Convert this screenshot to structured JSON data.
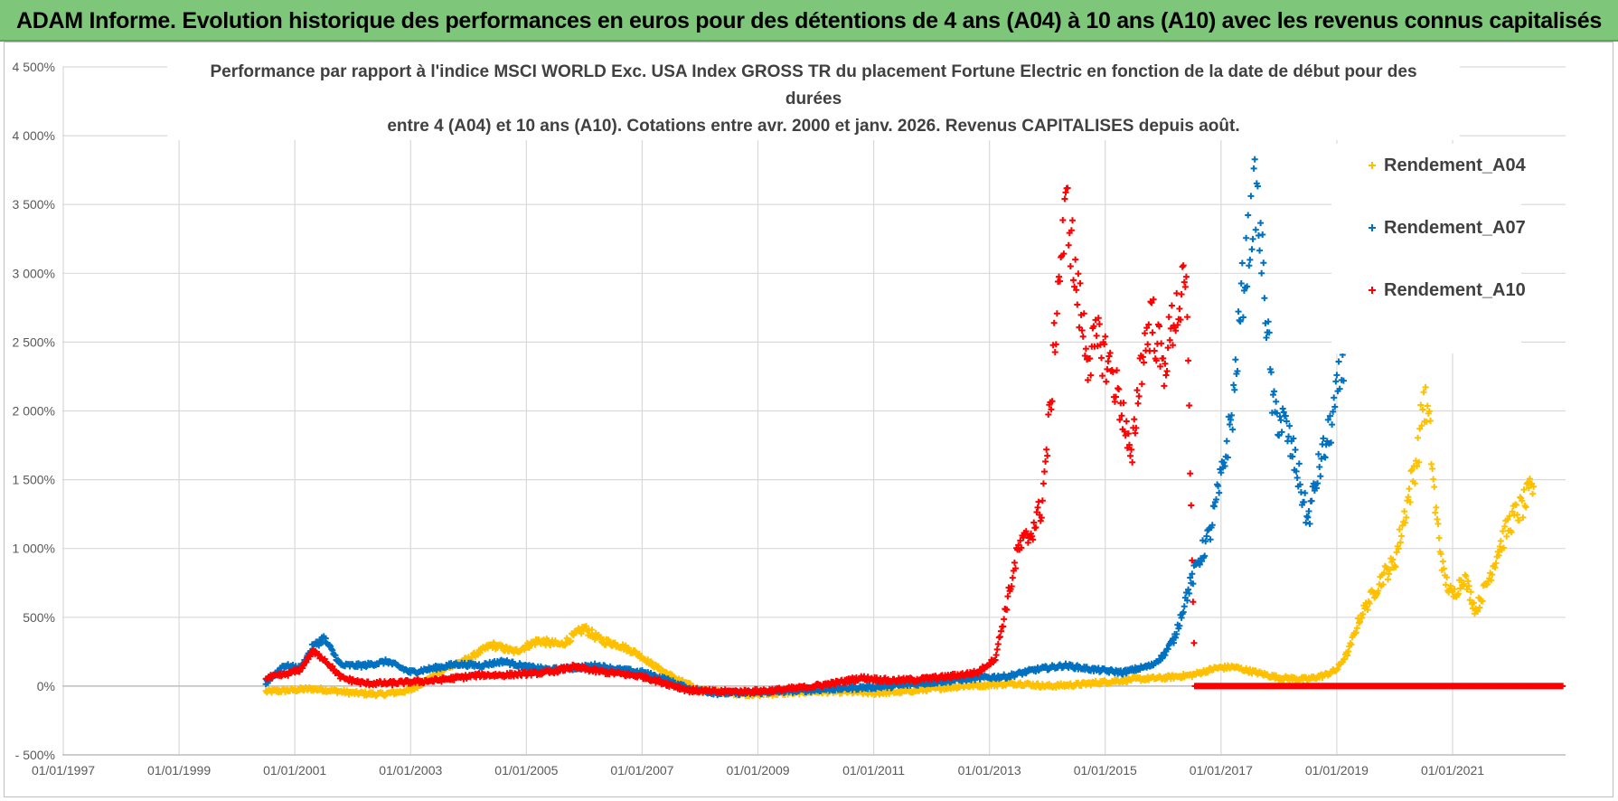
{
  "banner": {
    "title": "ADAM Informe. Evolution historique des performances en euros pour des détentions de 4 ans (A04) à 10 ans (A10) avec les revenus connus capitalisés"
  },
  "chart_data": {
    "type": "scatter",
    "title_lines": [
      "Performance par rapport à l'indice MSCI WORLD Exc. USA Index GROSS TR  du placement Fortune Electric  en fonction de la date de début pour des",
      "durées",
      "entre 4 (A04) et 10 ans (A10). Cotations entre avr. 2000 et janv. 2026. Revenus CAPITALISES depuis août."
    ],
    "xlabel": "",
    "ylabel": "",
    "x_range": [
      "1997-01-01",
      "2022-12-31"
    ],
    "x_ticks": [
      "01/01/1997",
      "01/01/1999",
      "01/01/2001",
      "01/01/2003",
      "01/01/2005",
      "01/01/2007",
      "01/01/2009",
      "01/01/2011",
      "01/01/2013",
      "01/01/2015",
      "01/01/2017",
      "01/01/2019",
      "01/01/2021"
    ],
    "ylim": [
      -500,
      4500
    ],
    "y_ticks": [
      -500,
      0,
      500,
      1000,
      1500,
      2000,
      2500,
      3000,
      3500,
      4000,
      4500
    ],
    "y_tick_labels": [
      "- 500%",
      "0%",
      "500%",
      "1 000%",
      "1 500%",
      "2 000%",
      "2 500%",
      "3 000%",
      "3 500%",
      "4 000%",
      "4 500%"
    ],
    "grid": true,
    "legend_position": "right",
    "series": [
      {
        "name": "Rendement_A04",
        "color": "#ffc000",
        "points": [
          [
            2000.5,
            -40
          ],
          [
            2000.9,
            -30
          ],
          [
            2001.3,
            -20
          ],
          [
            2001.6,
            -30
          ],
          [
            2002.0,
            -50
          ],
          [
            2002.5,
            -60
          ],
          [
            2003.0,
            -30
          ],
          [
            2003.3,
            50
          ],
          [
            2003.7,
            150
          ],
          [
            2004.0,
            200
          ],
          [
            2004.4,
            300
          ],
          [
            2004.8,
            250
          ],
          [
            2005.2,
            330
          ],
          [
            2005.6,
            300
          ],
          [
            2006.0,
            420
          ],
          [
            2006.3,
            330
          ],
          [
            2006.6,
            300
          ],
          [
            2006.9,
            240
          ],
          [
            2007.2,
            150
          ],
          [
            2007.6,
            50
          ],
          [
            2008.0,
            -30
          ],
          [
            2008.5,
            -50
          ],
          [
            2009.0,
            -60
          ],
          [
            2009.5,
            -50
          ],
          [
            2010.0,
            -40
          ],
          [
            2010.5,
            -40
          ],
          [
            2011.0,
            -50
          ],
          [
            2011.5,
            -40
          ],
          [
            2012.0,
            -20
          ],
          [
            2012.5,
            0
          ],
          [
            2013.0,
            10
          ],
          [
            2013.5,
            20
          ],
          [
            2014.0,
            0
          ],
          [
            2014.5,
            10
          ],
          [
            2015.0,
            30
          ],
          [
            2015.5,
            50
          ],
          [
            2016.0,
            60
          ],
          [
            2016.5,
            80
          ],
          [
            2016.9,
            130
          ],
          [
            2017.2,
            140
          ],
          [
            2017.6,
            100
          ],
          [
            2018.0,
            60
          ],
          [
            2018.5,
            50
          ],
          [
            2018.8,
            80
          ],
          [
            2019.0,
            120
          ],
          [
            2019.2,
            250
          ],
          [
            2019.4,
            500
          ],
          [
            2019.6,
            650
          ],
          [
            2019.8,
            800
          ],
          [
            2020.0,
            900
          ],
          [
            2020.2,
            1300
          ],
          [
            2020.4,
            1700
          ],
          [
            2020.5,
            2100
          ],
          [
            2020.6,
            1900
          ],
          [
            2020.7,
            1300
          ],
          [
            2020.85,
            800
          ],
          [
            2021.0,
            650
          ],
          [
            2021.2,
            800
          ],
          [
            2021.4,
            550
          ],
          [
            2021.6,
            750
          ],
          [
            2021.8,
            1000
          ],
          [
            2022.0,
            1200
          ],
          [
            2022.2,
            1300
          ],
          [
            2022.4,
            1450
          ]
        ]
      },
      {
        "name": "Rendement_A07",
        "color": "#0070c0",
        "points": [
          [
            2000.5,
            20
          ],
          [
            2000.8,
            150
          ],
          [
            2001.1,
            130
          ],
          [
            2001.3,
            280
          ],
          [
            2001.5,
            350
          ],
          [
            2001.8,
            150
          ],
          [
            2002.2,
            150
          ],
          [
            2002.6,
            180
          ],
          [
            2003.0,
            100
          ],
          [
            2003.4,
            130
          ],
          [
            2003.8,
            160
          ],
          [
            2004.2,
            150
          ],
          [
            2004.6,
            180
          ],
          [
            2005.0,
            140
          ],
          [
            2005.4,
            120
          ],
          [
            2005.8,
            130
          ],
          [
            2006.2,
            150
          ],
          [
            2006.6,
            120
          ],
          [
            2007.0,
            100
          ],
          [
            2007.4,
            50
          ],
          [
            2007.8,
            -20
          ],
          [
            2008.3,
            -50
          ],
          [
            2008.8,
            -50
          ],
          [
            2009.3,
            -40
          ],
          [
            2009.8,
            -30
          ],
          [
            2010.3,
            -20
          ],
          [
            2010.8,
            -10
          ],
          [
            2011.3,
            0
          ],
          [
            2011.8,
            20
          ],
          [
            2012.3,
            40
          ],
          [
            2012.8,
            60
          ],
          [
            2013.3,
            70
          ],
          [
            2013.8,
            120
          ],
          [
            2014.3,
            150
          ],
          [
            2014.8,
            120
          ],
          [
            2015.3,
            100
          ],
          [
            2015.8,
            150
          ],
          [
            2016.0,
            220
          ],
          [
            2016.2,
            350
          ],
          [
            2016.4,
            650
          ],
          [
            2016.6,
            900
          ],
          [
            2016.8,
            1100
          ],
          [
            2017.0,
            1500
          ],
          [
            2017.2,
            2000
          ],
          [
            2017.35,
            2800
          ],
          [
            2017.5,
            3300
          ],
          [
            2017.6,
            3600
          ],
          [
            2017.75,
            2900
          ],
          [
            2017.9,
            2000
          ],
          [
            2018.1,
            1900
          ],
          [
            2018.3,
            1600
          ],
          [
            2018.5,
            1200
          ],
          [
            2018.7,
            1600
          ],
          [
            2018.85,
            1800
          ],
          [
            2019.0,
            2100
          ],
          [
            2019.15,
            2500
          ]
        ]
      },
      {
        "name": "Rendement_A10",
        "color": "#ff0000",
        "points": [
          [
            2000.5,
            60
          ],
          [
            2000.8,
            80
          ],
          [
            2001.1,
            120
          ],
          [
            2001.3,
            250
          ],
          [
            2001.5,
            200
          ],
          [
            2001.8,
            60
          ],
          [
            2002.2,
            20
          ],
          [
            2002.6,
            20
          ],
          [
            2003.0,
            30
          ],
          [
            2003.4,
            40
          ],
          [
            2003.8,
            60
          ],
          [
            2004.2,
            80
          ],
          [
            2004.6,
            80
          ],
          [
            2005.0,
            90
          ],
          [
            2005.4,
            100
          ],
          [
            2005.8,
            140
          ],
          [
            2006.2,
            110
          ],
          [
            2006.6,
            90
          ],
          [
            2007.0,
            70
          ],
          [
            2007.4,
            20
          ],
          [
            2007.8,
            -30
          ],
          [
            2008.3,
            -40
          ],
          [
            2008.8,
            -40
          ],
          [
            2009.3,
            -30
          ],
          [
            2009.8,
            -10
          ],
          [
            2010.3,
            20
          ],
          [
            2010.8,
            60
          ],
          [
            2011.3,
            40
          ],
          [
            2011.8,
            50
          ],
          [
            2012.3,
            70
          ],
          [
            2012.8,
            100
          ],
          [
            2013.1,
            200
          ],
          [
            2013.3,
            600
          ],
          [
            2013.5,
            1000
          ],
          [
            2013.7,
            1100
          ],
          [
            2013.9,
            1300
          ],
          [
            2014.05,
            2000
          ],
          [
            2014.2,
            3000
          ],
          [
            2014.35,
            3500
          ],
          [
            2014.5,
            2900
          ],
          [
            2014.7,
            2400
          ],
          [
            2014.9,
            2500
          ],
          [
            2015.1,
            2300
          ],
          [
            2015.3,
            2000
          ],
          [
            2015.45,
            1600
          ],
          [
            2015.6,
            2300
          ],
          [
            2015.8,
            2700
          ],
          [
            2016.0,
            2300
          ],
          [
            2016.2,
            2700
          ],
          [
            2016.4,
            2900
          ],
          [
            2016.55,
            0
          ],
          [
            2017.0,
            0
          ],
          [
            2017.5,
            0
          ],
          [
            2018.0,
            0
          ],
          [
            2018.5,
            0
          ],
          [
            2019.0,
            0
          ],
          [
            2019.5,
            0
          ],
          [
            2020.0,
            0
          ],
          [
            2020.5,
            0
          ],
          [
            2021.0,
            0
          ],
          [
            2021.5,
            0
          ],
          [
            2022.0,
            0
          ],
          [
            2022.5,
            0
          ],
          [
            2022.9,
            0
          ]
        ]
      }
    ]
  }
}
